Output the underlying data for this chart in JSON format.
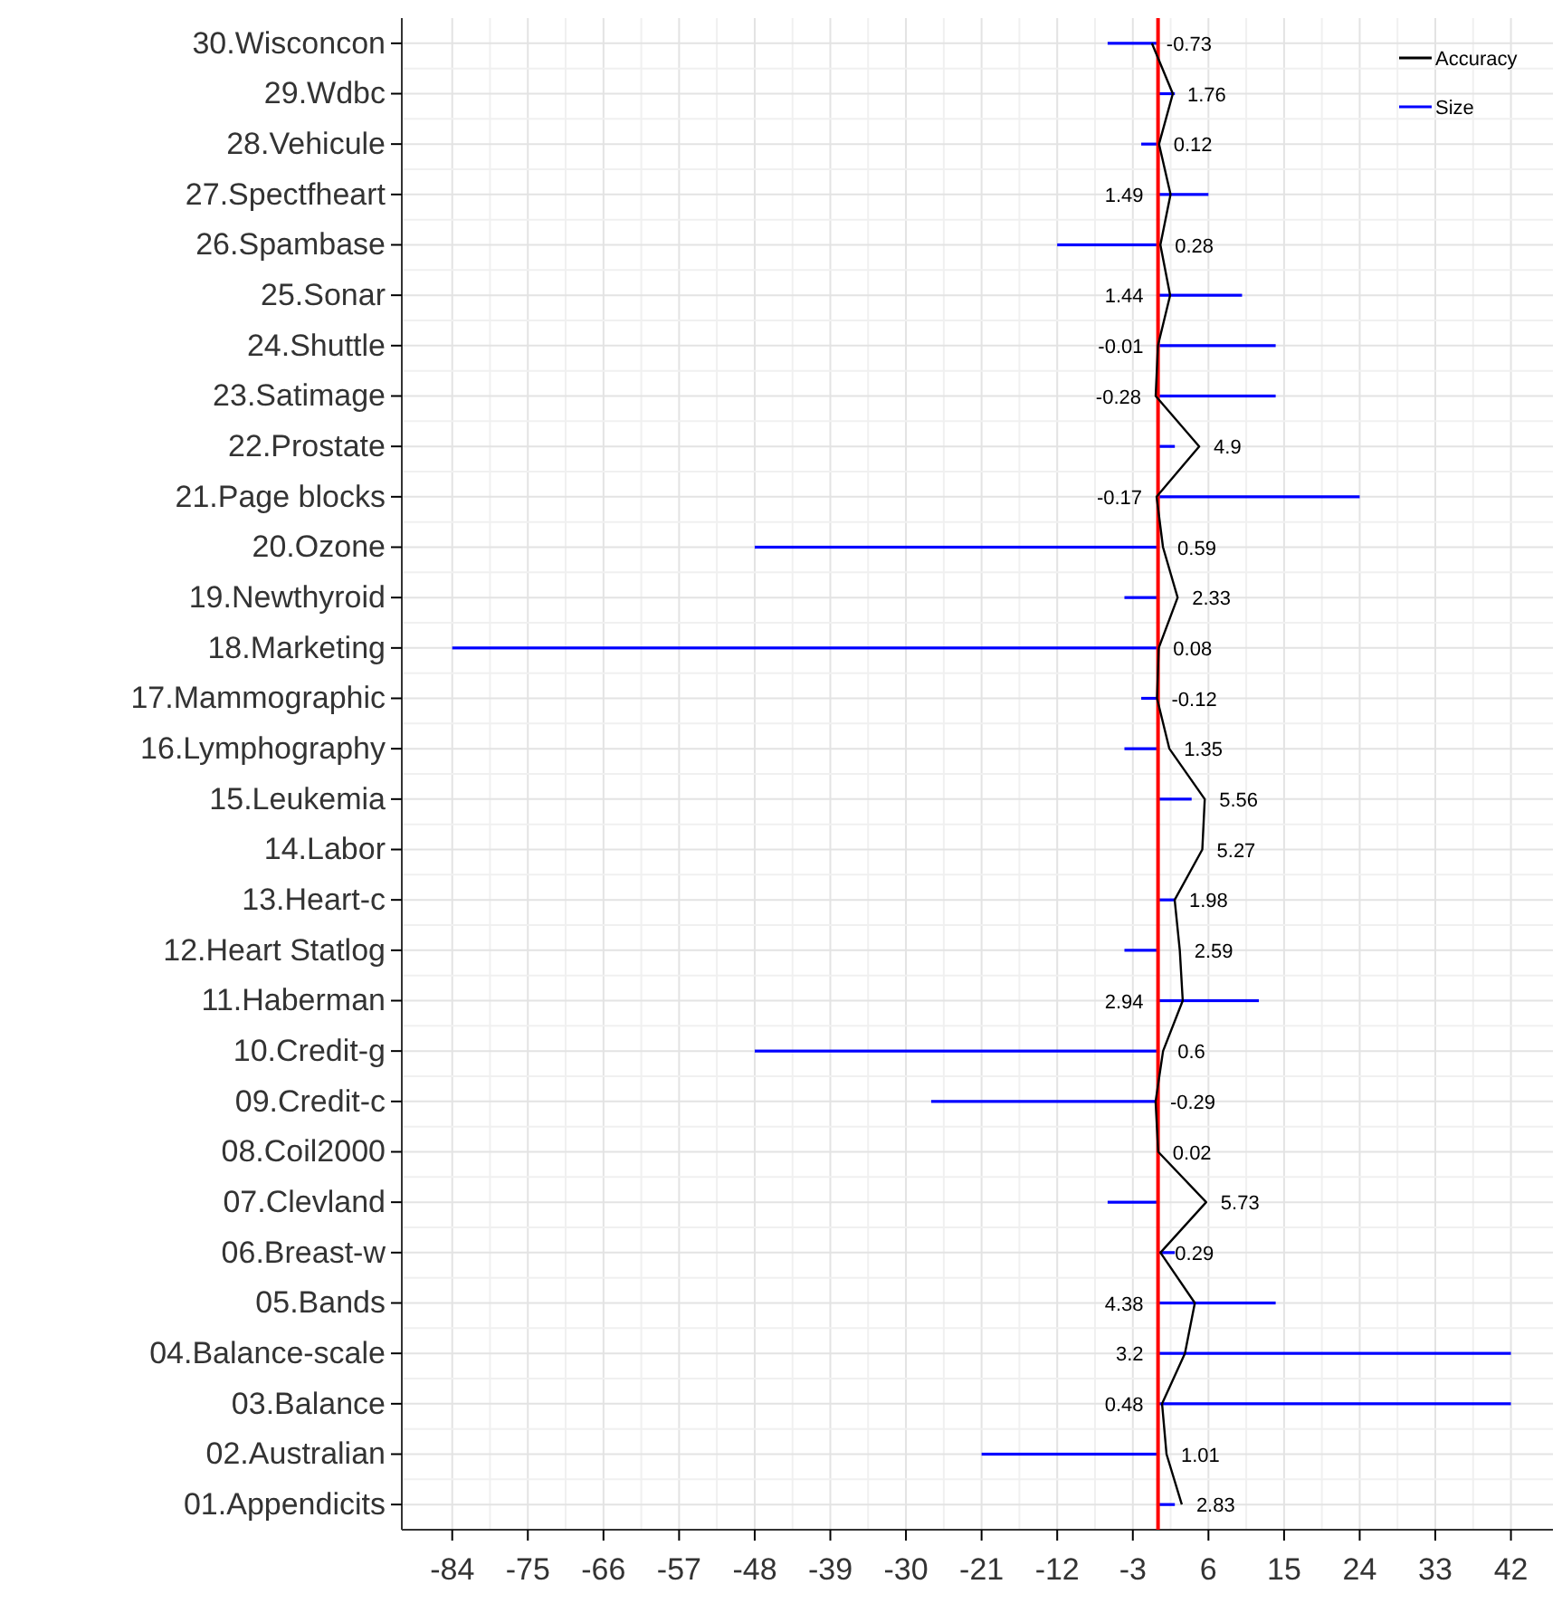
{
  "chart_data": {
    "type": "bar",
    "orientation": "horizontal",
    "categories": [
      "30.Wisconcon",
      "29.Wdbc",
      "28.Vehicule",
      "27.Spectfheart",
      "26.Spambase",
      "25.Sonar",
      "24.Shuttle",
      "23.Satimage",
      "22.Prostate",
      "21.Page blocks",
      "20.Ozone",
      "19.Newthyroid",
      "18.Marketing",
      "17.Mammographic",
      "16.Lymphography",
      "15.Leukemia",
      "14.Labor",
      "13.Heart-c",
      "12.Heart Statlog",
      "11.Haberman",
      "10.Credit-g",
      "09.Credit-c",
      "08.Coil2000",
      "07.Clevland",
      "06.Breast-w",
      "05.Bands",
      "04.Balance-scale",
      "03.Balance",
      "02.Australian",
      "01.Appendicits"
    ],
    "series": [
      {
        "name": "Accuracy",
        "type": "line",
        "color": "#000000",
        "values": [
          -0.73,
          1.76,
          0.12,
          1.49,
          0.28,
          1.44,
          -0.01,
          -0.28,
          4.9,
          -0.17,
          0.59,
          2.33,
          0.08,
          -0.12,
          1.35,
          5.56,
          5.27,
          1.98,
          2.59,
          2.94,
          0.6,
          -0.29,
          0.02,
          5.73,
          0.29,
          4.38,
          3.2,
          0.48,
          1.01,
          2.83
        ],
        "value_labels": [
          "-0.73",
          "1.76",
          "0.12",
          "1.49",
          "0.28",
          "1.44",
          "-0.01",
          "-0.28",
          "4.9",
          "-0.17",
          "0.59",
          "2.33",
          "0.08",
          "-0.12",
          "1.35",
          "5.56",
          "5.27",
          "1.98",
          "2.59",
          "2.94",
          "0.6",
          "-0.29",
          "0.02",
          "5.73",
          "0.29",
          "4.38",
          "3.2",
          "0.48",
          "1.01",
          "2.83"
        ]
      },
      {
        "name": "Size",
        "color": "#0000ff",
        "values": [
          -6,
          2,
          -2,
          6,
          -12,
          10,
          14,
          14,
          2,
          24,
          -48,
          -4,
          -84,
          -2,
          -4,
          4,
          0,
          2,
          -4,
          12,
          -48,
          -27,
          0,
          -6,
          2,
          14,
          42,
          42,
          -21,
          2
        ]
      }
    ],
    "xlim": [
      -90,
      47
    ],
    "xticks": [
      -84,
      -75,
      -66,
      -57,
      -48,
      -39,
      -30,
      -21,
      -12,
      -3,
      6,
      15,
      24,
      33,
      42
    ],
    "ref_lines": [
      {
        "axis": "x",
        "value": 0,
        "color": "#ff0000"
      }
    ],
    "grid": true,
    "legend": "top right",
    "marker": "none"
  }
}
